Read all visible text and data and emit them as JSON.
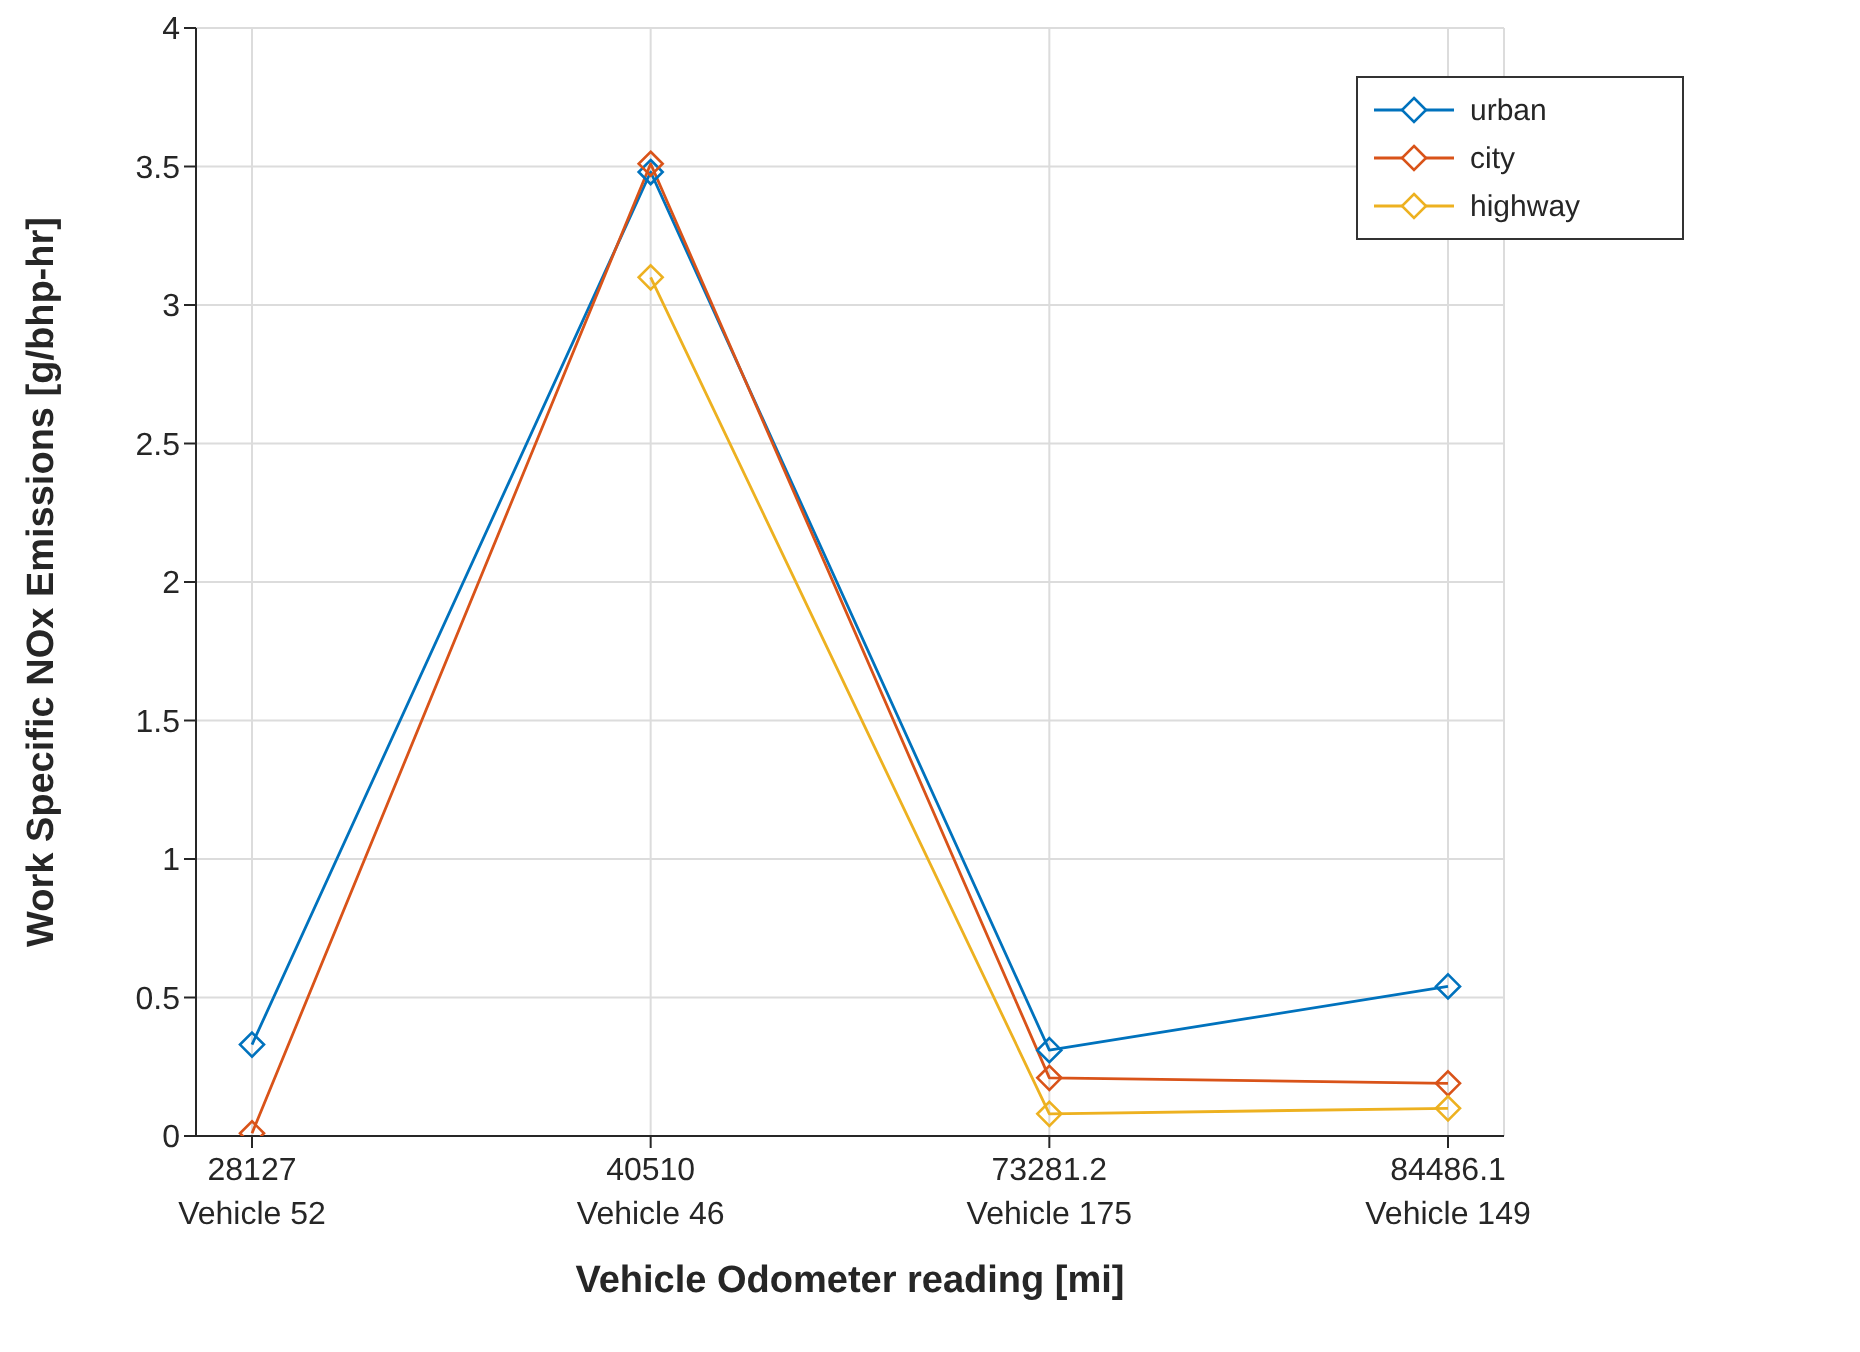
{
  "chart_data": {
    "type": "line",
    "xlabel": "Vehicle Odometer reading [mi]",
    "ylabel": "Work Specific NOx Emissions [g/bhp-hr]",
    "categories": [
      "28127\nVehicle 52",
      "40510\nVehicle 46",
      "73281.2\nVehicle 175",
      "84486.1\nVehicle 149"
    ],
    "series": [
      {
        "name": "urban",
        "color": "#0072bd",
        "values": [
          0.33,
          3.48,
          0.31,
          0.54
        ]
      },
      {
        "name": "city",
        "color": "#d95319",
        "values": [
          0.01,
          3.51,
          0.21,
          0.19
        ]
      },
      {
        "name": "highway",
        "color": "#edb120",
        "values": [
          null,
          3.1,
          0.08,
          0.1
        ]
      }
    ],
    "ylim": [
      0,
      4
    ],
    "yticks": [
      0,
      0.5,
      1,
      1.5,
      2,
      2.5,
      3,
      3.5,
      4
    ],
    "grid": true,
    "legend": "top right",
    "marker": "diamond",
    "line_style": "solid"
  }
}
